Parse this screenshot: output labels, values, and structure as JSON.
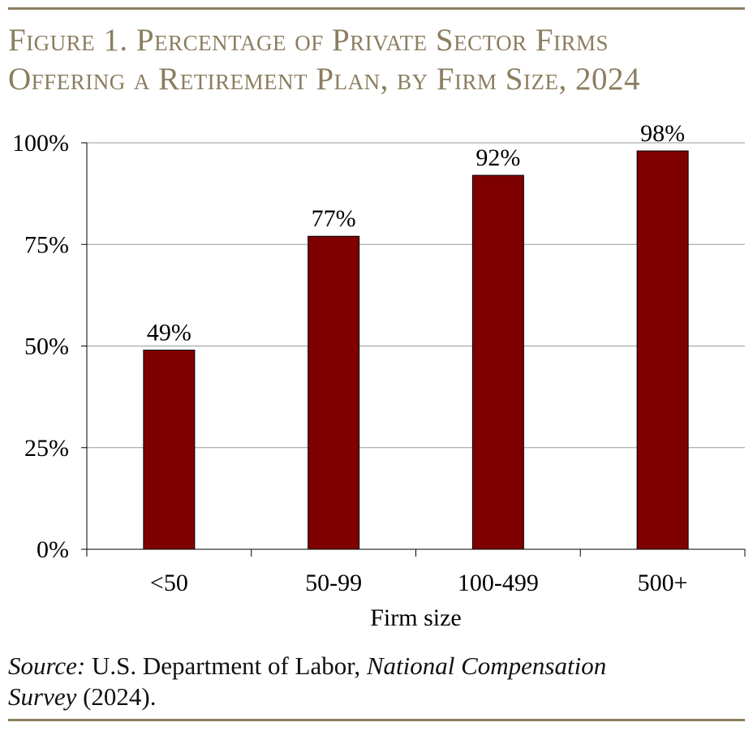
{
  "title_line1": "Figure 1. Percentage of Private Sector Firms",
  "title_line2": "Offering a Retirement Plan, by Firm Size, 2024",
  "source": {
    "label": "Source:",
    "text1": " U.S. Department of Labor, ",
    "publication_1": "National Compensation",
    "publication_2": "Survey",
    "text2": " (2024)."
  },
  "colors": {
    "bar": "#7f0000",
    "rule": "#8b7d5f",
    "gridline": "#9a9a9a"
  },
  "chart_data": {
    "type": "bar",
    "title": "Figure 1. Percentage of Private Sector Firms Offering a Retirement Plan, by Firm Size, 2024",
    "categories": [
      "<50",
      "50-99",
      "100-499",
      "500+"
    ],
    "values": [
      49,
      77,
      92,
      98
    ],
    "data_labels": [
      "49%",
      "77%",
      "92%",
      "98%"
    ],
    "xlabel": "Firm size",
    "ylabel": "",
    "ylim": [
      0,
      100
    ],
    "yticks": [
      0,
      25,
      50,
      75,
      100
    ],
    "ytick_labels": [
      "0%",
      "25%",
      "50%",
      "75%",
      "100%"
    ],
    "grid": true,
    "legend": "none"
  }
}
